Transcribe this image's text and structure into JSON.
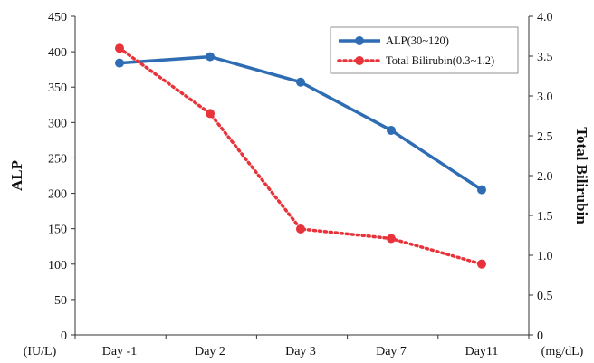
{
  "chart_data": {
    "type": "line",
    "categories": [
      "Day -1",
      "Day 2",
      "Day 3",
      "Day 7",
      "Day11"
    ],
    "y_left": {
      "label": "ALP",
      "unit": "(IU/L)",
      "range": [
        0,
        450
      ],
      "ticks": [
        "0",
        "50",
        "100",
        "150",
        "200",
        "250",
        "300",
        "350",
        "400",
        "450"
      ]
    },
    "y_right": {
      "label": "Total Bilirubin",
      "unit": "(mg/dL)",
      "range": [
        0,
        4.0
      ],
      "ticks": [
        "0",
        "0.5",
        "1.0",
        "1.5",
        "2.0",
        "2.5",
        "3.0",
        "3.5",
        "4.0"
      ]
    },
    "series": [
      {
        "name": "ALP(30~120)",
        "axis": "left",
        "style": "solid",
        "color": "#2e6db4",
        "values": [
          384,
          393,
          357,
          289,
          205
        ]
      },
      {
        "name": "Total Bilirubin(0.3~1.2)",
        "axis": "right",
        "style": "dotted",
        "color": "#e8333a",
        "values": [
          3.6,
          2.78,
          1.33,
          1.21,
          0.89
        ]
      }
    ],
    "legend_position": "top-right",
    "grid": false
  }
}
